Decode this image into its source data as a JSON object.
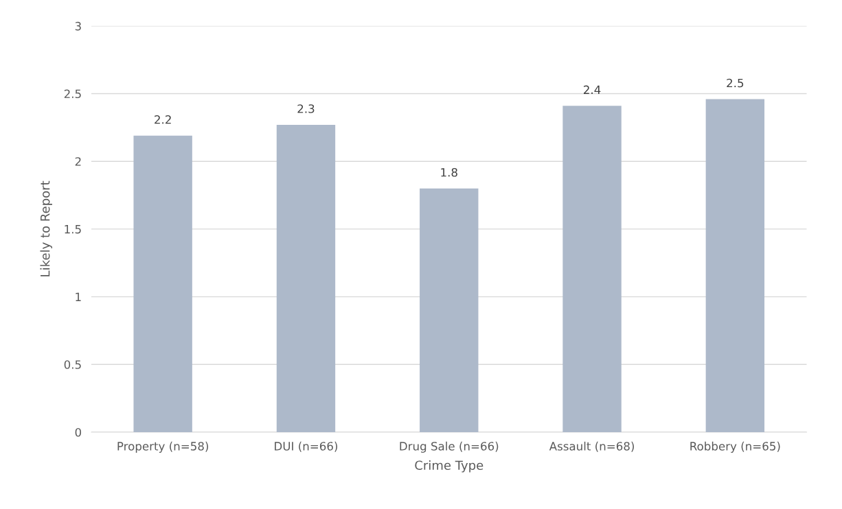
{
  "chart_data": {
    "type": "bar",
    "xlabel": "Crime Type",
    "ylabel": "Likely to Report",
    "categories": [
      "Property (n=58)",
      "DUI (n=66)",
      "Drug Sale (n=66)",
      "Assault (n=68)",
      "Robbery (n=65)"
    ],
    "values": [
      2.19,
      2.27,
      1.8,
      2.41,
      2.46
    ],
    "value_labels": [
      "2.2",
      "2.3",
      "1.8",
      "2.4",
      "2.5"
    ],
    "color": "#adb9ca",
    "ylim": [
      0,
      3
    ],
    "yticks": [
      0,
      0.5,
      1,
      1.5,
      2,
      2.5,
      3
    ],
    "grid": "y"
  }
}
